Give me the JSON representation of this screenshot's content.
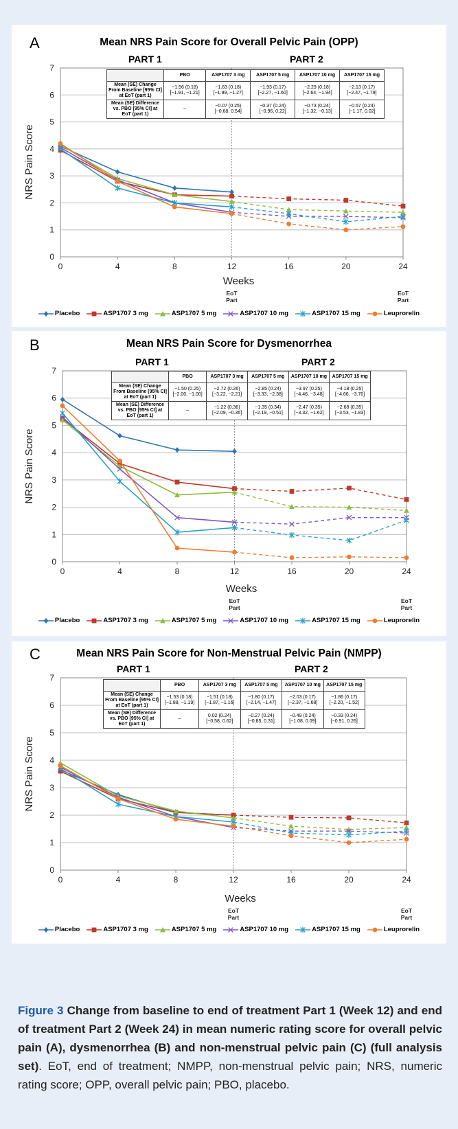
{
  "colors": {
    "Placebo": "#2e75b6",
    "ASP1707 3 mg": "#c0392b",
    "ASP1707 5 mg": "#8fbc3f",
    "ASP1707 10 mg": "#7e57c2",
    "ASP1707 15 mg": "#26a0c8",
    "Leuprorelin": "#ed7d31"
  },
  "markers": {
    "Placebo": "diamond",
    "ASP1707 3 mg": "square",
    "ASP1707 5 mg": "triangle",
    "ASP1707 10 mg": "x",
    "ASP1707 15 mg": "star",
    "Leuprorelin": "circle"
  },
  "panels": [
    {
      "letter": "A",
      "part1": "PART 1",
      "part2": "PART 2",
      "table": {
        "headers": [
          "",
          "PBO",
          "ASP1707 3 mg",
          "ASP1707 5 mg",
          "ASP1707 10 mg",
          "ASP1707 15 mg"
        ],
        "rows": [
          {
            "label": "Mean (SE) Change From Baseline [95% CI] at EoT (part 1)",
            "cells": [
              "−1.56 (0.18) [−1.91, −1.21]",
              "−1.63 (0.18) [−1.99, −1.27]",
              "−1.93 (0.17) [−2.27, −1.60]",
              "−2.29 (0.18) [−2.64, −1.94]",
              "−2.13 (0.17) [−2.47, −1.79]"
            ]
          },
          {
            "label": "Mean (SE) Difference vs. PBO [95% CI] at EoT (part 1)",
            "cells": [
              "–",
              "−0.07 (0.25) [−0.68, 0.54]",
              "−0.37 (0.24) [−0.96, 0.22]",
              "−0.73 (0.24) [−1.32, −0.13]",
              "−0.57 (0.24) [−1.17, 0.02]"
            ]
          }
        ]
      }
    },
    {
      "letter": "B",
      "part1": "PART 1",
      "part2": "PART 2",
      "table": {
        "headers": [
          "",
          "PBO",
          "ASP1707 3 mg",
          "ASP1707 5 mg",
          "ASP1707 10 mg",
          "ASP1707 15 mg"
        ],
        "rows": [
          {
            "label": "Mean (SE) Change From Baseline [95% CI] at EoT (part 1)",
            "cells": [
              "−1.50 (0.25) [−2.00, −1.00]",
              "−2.72 (0.26) [−3.22, −2.21]",
              "−2.85 (0.24) [−3.33, −2.38]",
              "−3.97 (0.25) [−4.46, −3.48]",
              "−4.18 (0.25) [−4.66, −3.70]"
            ]
          },
          {
            "label": "Mean (SE) Difference vs. PBO [95% CI] at EoT (part 1)",
            "cells": [
              "–",
              "−1.22 (0.36) [−2.09, −0.35]",
              "−1.35 (0.34) [−2.19, −0.51]",
              "−2.47 (0.35) [−3.32, −1.62]",
              "−2.68 (0.35) [−3.53, −1.83]"
            ]
          }
        ]
      }
    },
    {
      "letter": "C",
      "part1": "PART 1",
      "part2": "PART 2",
      "table": {
        "headers": [
          "",
          "PBO",
          "ASP1707 3 mg",
          "ASP1707 5 mg",
          "ASP1707 10 mg",
          "ASP1707 15 mg"
        ],
        "rows": [
          {
            "label": "Mean (SE) Change From Baseline [95% CI] at EoT (part 1)",
            "cells": [
              "−1.53 (0.18) [−1.88, −1.19]",
              "−1.51 (0.18) [−1.87, −1.16]",
              "−1.80 (0.17) [−2.14, −1.47]",
              "−2.03 (0.17) [−2.37, −1.68]",
              "−1.86 (0.17) [−2.20, −1.52]"
            ]
          },
          {
            "label": "Mean (SE) Difference vs. PBO [95% CI] at EoT (part 1)",
            "cells": [
              "–",
              "0.02 (0.24) [−0.58, 0.62]",
              "−0.27 (0.24) [−0.85, 0.31]",
              "−0.49 (0.24) [−1.08, 0.09]",
              "−0.33 (0.24) [−0.91, 0.26]"
            ]
          }
        ]
      }
    }
  ],
  "chart_data": [
    {
      "type": "line",
      "title": "Mean NRS Pain Score for Overall Pelvic Pain (OPP)",
      "xlabel": "Weeks",
      "ylabel": "NRS  Pain  Score",
      "x": [
        0,
        4,
        8,
        12,
        16,
        20,
        24
      ],
      "ylim": [
        0,
        7
      ],
      "grid": true,
      "eot_labels": [
        "EoT Part 1",
        "EoT Part 2"
      ],
      "legend": "bottom",
      "series": [
        {
          "name": "Placebo",
          "values": [
            4.1,
            3.15,
            2.55,
            2.4,
            null,
            null,
            null
          ]
        },
        {
          "name": "ASP1707 3 mg",
          "values": [
            3.95,
            2.8,
            2.3,
            2.25,
            2.15,
            2.1,
            1.88
          ]
        },
        {
          "name": "ASP1707 5 mg",
          "values": [
            4.15,
            2.9,
            2.3,
            2.05,
            1.75,
            1.7,
            1.65
          ]
        },
        {
          "name": "ASP1707 10 mg",
          "values": [
            4.05,
            2.85,
            2.0,
            1.65,
            1.5,
            1.5,
            1.45
          ]
        },
        {
          "name": "ASP1707 15 mg",
          "values": [
            4.0,
            2.55,
            2.0,
            1.85,
            1.6,
            1.3,
            1.5
          ]
        },
        {
          "name": "Leuprorelin",
          "values": [
            4.2,
            2.8,
            1.85,
            1.6,
            1.22,
            1.0,
            1.12
          ]
        }
      ]
    },
    {
      "type": "line",
      "title": "Mean NRS Pain Score for Dysmenorrhea",
      "xlabel": "Weeks",
      "ylabel": "NRS  Pain  Score",
      "x": [
        0,
        4,
        8,
        12,
        16,
        20,
        24
      ],
      "ylim": [
        0,
        7
      ],
      "grid": true,
      "eot_labels": [
        "EoT Part 1",
        "EoT Part 2"
      ],
      "legend": "bottom",
      "series": [
        {
          "name": "Placebo",
          "values": [
            5.95,
            4.62,
            4.1,
            4.05,
            null,
            null,
            null
          ]
        },
        {
          "name": "ASP1707 3 mg",
          "values": [
            5.25,
            3.6,
            2.92,
            2.68,
            2.58,
            2.7,
            2.28
          ]
        },
        {
          "name": "ASP1707 5 mg",
          "values": [
            5.2,
            3.5,
            2.45,
            2.55,
            2.02,
            2.0,
            1.88
          ]
        },
        {
          "name": "ASP1707 10 mg",
          "values": [
            5.3,
            3.4,
            1.62,
            1.45,
            1.38,
            1.62,
            1.62
          ]
        },
        {
          "name": "ASP1707 15 mg",
          "values": [
            5.45,
            2.95,
            1.08,
            1.25,
            0.98,
            0.78,
            1.52
          ]
        },
        {
          "name": "Leuprorelin",
          "values": [
            5.72,
            3.7,
            0.5,
            0.35,
            0.15,
            0.18,
            0.15
          ]
        }
      ]
    },
    {
      "type": "line",
      "title": "Mean NRS Pain Score for Non-Menstrual Pelvic Pain (NMPP)",
      "xlabel": "Weeks",
      "ylabel": "NRS  Pain  Score",
      "x": [
        0,
        4,
        8,
        12,
        16,
        20,
        24
      ],
      "ylim": [
        0,
        7
      ],
      "grid": true,
      "eot_labels": [
        "EoT Part 1",
        "EoT Part 2"
      ],
      "legend": "bottom",
      "series": [
        {
          "name": "Placebo",
          "values": [
            3.65,
            2.75,
            2.1,
            2.0,
            null,
            null,
            null
          ]
        },
        {
          "name": "ASP1707 3 mg",
          "values": [
            3.6,
            2.6,
            2.1,
            2.0,
            1.92,
            1.9,
            1.72
          ]
        },
        {
          "name": "ASP1707 5 mg",
          "values": [
            3.9,
            2.7,
            2.15,
            1.9,
            1.6,
            1.48,
            1.55
          ]
        },
        {
          "name": "ASP1707 10 mg",
          "values": [
            3.75,
            2.65,
            1.95,
            1.55,
            1.42,
            1.42,
            1.35
          ]
        },
        {
          "name": "ASP1707 15 mg",
          "values": [
            3.7,
            2.4,
            1.95,
            1.75,
            1.35,
            1.28,
            1.42
          ]
        },
        {
          "name": "Leuprorelin",
          "values": [
            3.8,
            2.6,
            1.85,
            1.6,
            1.25,
            1.0,
            1.12
          ]
        }
      ]
    }
  ],
  "caption": {
    "fig_label": "Figure 3",
    "bold_text": " Change from baseline to end of treatment Part 1 (Week 12) and end of treatment Part 2 (Week 24) in mean numeric rating score for overall pelvic pain (A), dysmenorrhea (B) and non-menstrual pelvic pain (C) (full analysis set)",
    "rest": ". EoT, end of treatment; NMPP, non-menstrual pelvic pain; NRS, numeric rating score; OPP, overall pelvic pain; PBO, placebo."
  }
}
